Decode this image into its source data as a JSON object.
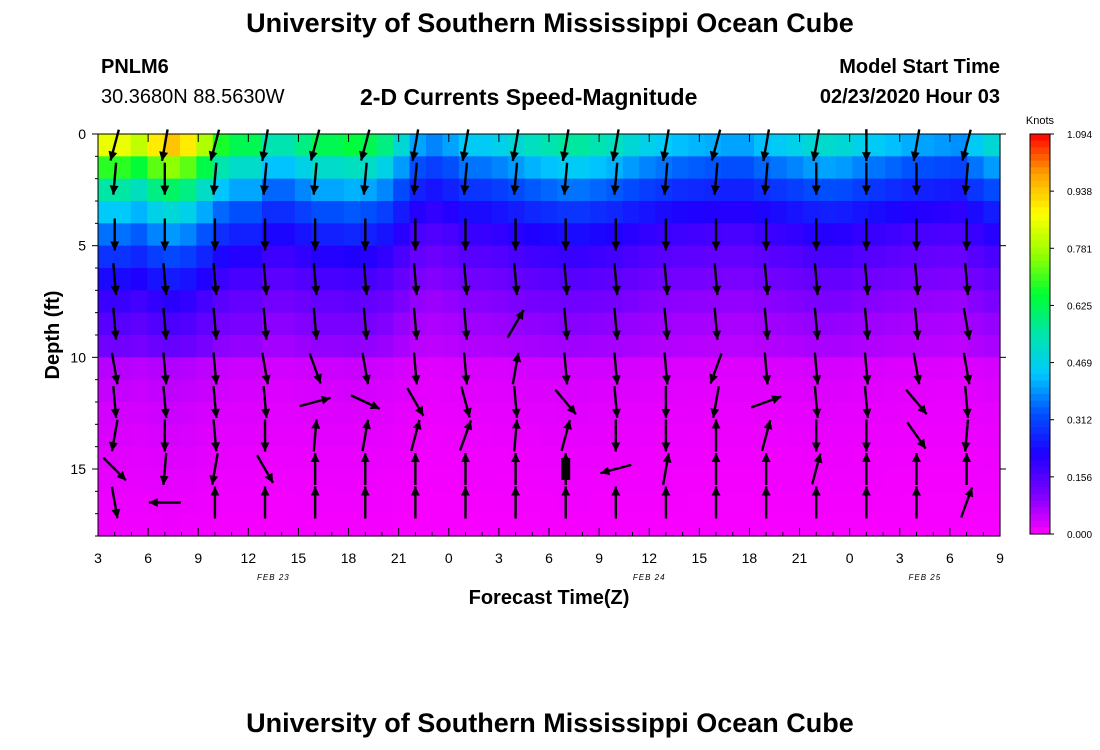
{
  "page": {
    "title": "University of Southern Mississippi Ocean Cube",
    "footer_title": "University of Southern Mississippi Ocean Cube"
  },
  "station": {
    "id": "PNLM6",
    "coords": "30.3680N 88.5630W"
  },
  "model": {
    "start_label": "Model Start Time",
    "start_time": "02/23/2020 Hour 03"
  },
  "colors": {
    "scale": [
      "#ff00ff",
      "#7a00ff",
      "#1e00ff",
      "#0050ff",
      "#00c8ff",
      "#00e6aa",
      "#00ff30",
      "#9aff00",
      "#ffff00",
      "#ffa000",
      "#ff0000"
    ],
    "arrow": "#000000",
    "background": "#ffffff"
  },
  "chart_data": {
    "type": "heatmap",
    "title": "2-D Currents Speed-Magnitude",
    "xlabel": "Forecast Time(Z)",
    "ylabel": "Depth (ft)",
    "x_tick_labels": [
      "3",
      "6",
      "9",
      "12",
      "15",
      "18",
      "21",
      "0",
      "3",
      "6",
      "9",
      "12",
      "15",
      "18",
      "21",
      "0",
      "3",
      "6",
      "9"
    ],
    "date_labels": [
      {
        "text": "FEB 23",
        "at_tick": 3.5
      },
      {
        "text": "FEB 24",
        "at_tick": 11
      },
      {
        "text": "FEB 25",
        "at_tick": 16.5
      }
    ],
    "y_ticks": [
      0,
      5,
      10,
      15
    ],
    "ylim": [
      0,
      18
    ],
    "xlim_hours": [
      0,
      54
    ],
    "colorbar": {
      "label": "Knots",
      "ticks": [
        "1.094",
        "0.938",
        "0.781",
        "0.625",
        "0.469",
        "0.312",
        "0.156",
        "0.000"
      ],
      "range": [
        0,
        1.094
      ]
    },
    "depth_levels_ft": [
      0.5,
      1.5,
      2.5,
      3.5,
      4.5,
      5.5,
      6.5,
      7.5,
      8.5,
      9.5,
      10.5,
      11.5,
      12.5,
      13.5,
      14.5,
      15.5,
      16.5,
      17.5
    ],
    "surface_profile_knots": [
      0.95,
      0.95,
      0.9,
      1.0,
      1.05,
      1.0,
      0.88,
      0.75,
      0.7,
      0.7,
      0.6,
      0.6,
      0.65,
      0.7,
      0.7,
      0.72,
      0.7,
      0.65,
      0.55,
      0.45,
      0.42,
      0.45,
      0.5,
      0.5,
      0.52,
      0.55,
      0.58,
      0.6,
      0.62,
      0.62,
      0.6,
      0.58,
      0.55,
      0.52,
      0.5,
      0.48,
      0.47,
      0.46,
      0.45,
      0.45,
      0.48,
      0.5,
      0.52,
      0.55,
      0.56,
      0.55,
      0.52,
      0.5,
      0.48,
      0.46,
      0.45,
      0.44,
      0.43,
      0.5,
      0.55
    ],
    "vector_columns_hours": [
      1,
      4,
      7,
      10,
      13,
      16,
      19,
      22,
      25,
      28,
      31,
      34,
      37,
      40,
      43,
      46,
      49,
      52
    ],
    "vector_rows_ft": [
      0.5,
      2.0,
      4.5,
      6.5,
      8.5,
      10.5,
      12.0,
      13.5,
      15.0,
      16.5
    ],
    "vector_directions_deg": [
      [
        195,
        190,
        195,
        190,
        195,
        195,
        190,
        190,
        190,
        190,
        190,
        190,
        195,
        190,
        190,
        180,
        190,
        195
      ],
      [
        185,
        180,
        185,
        185,
        185,
        185,
        185,
        185,
        185,
        185,
        185,
        185,
        185,
        185,
        180,
        180,
        180,
        185
      ],
      [
        180,
        180,
        180,
        180,
        180,
        180,
        180,
        180,
        180,
        180,
        180,
        180,
        180,
        180,
        180,
        180,
        180,
        180
      ],
      [
        175,
        175,
        175,
        175,
        175,
        175,
        175,
        175,
        175,
        175,
        175,
        175,
        175,
        175,
        175,
        175,
        175,
        175
      ],
      [
        175,
        175,
        175,
        175,
        175,
        175,
        175,
        175,
        30,
        175,
        175,
        175,
        175,
        175,
        175,
        175,
        175,
        170
      ],
      [
        170,
        175,
        175,
        170,
        160,
        170,
        175,
        175,
        10,
        175,
        175,
        175,
        200,
        175,
        175,
        175,
        170,
        170
      ],
      [
        175,
        175,
        175,
        175,
        75,
        115,
        150,
        165,
        175,
        140,
        175,
        180,
        190,
        70,
        175,
        175,
        140,
        175
      ],
      [
        190,
        180,
        175,
        180,
        5,
        10,
        15,
        20,
        5,
        15,
        180,
        180,
        0,
        15,
        180,
        180,
        145,
        185
      ],
      [
        135,
        185,
        190,
        150,
        0,
        0,
        0,
        0,
        0,
        0,
        255,
        10,
        0,
        0,
        15,
        0,
        0,
        0
      ],
      [
        170,
        270,
        0,
        0,
        0,
        0,
        0,
        0,
        0,
        0,
        0,
        0,
        0,
        0,
        0,
        0,
        0,
        20
      ]
    ],
    "calm_markers": [
      {
        "hour": 28,
        "depth_ft": 15.0
      }
    ]
  }
}
